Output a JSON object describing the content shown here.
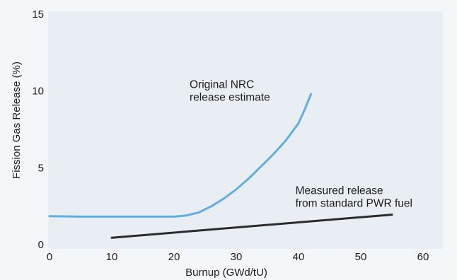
{
  "chart_data": {
    "type": "line",
    "xlabel": "Burnup (GWd/tU)",
    "ylabel": "Fission Gas Release (%)",
    "xlim": [
      0,
      60
    ],
    "ylim": [
      0,
      15
    ],
    "x_ticks": [
      "0",
      "10",
      "20",
      "30",
      "40",
      "50",
      "60"
    ],
    "y_ticks": [
      "0",
      "5",
      "10",
      "15"
    ],
    "grid": false,
    "colors": {
      "background": "#f4f7fa",
      "panel": "#e8eef4",
      "nrc_curve": "#62aedc",
      "measured_line": "#2b2b2b"
    },
    "series": [
      {
        "x": [
          0,
          5,
          10,
          15,
          20,
          22,
          24,
          26,
          28,
          30,
          32,
          34,
          36,
          38,
          40,
          41,
          42
        ],
        "y": [
          1.85,
          1.82,
          1.82,
          1.82,
          1.82,
          1.9,
          2.1,
          2.5,
          3.0,
          3.6,
          4.3,
          5.1,
          5.9,
          6.8,
          7.9,
          8.8,
          9.8
        ]
      },
      {
        "x": [
          10,
          55
        ],
        "y": [
          0.45,
          1.95
        ]
      }
    ],
    "annotations": [
      {
        "lines": [
          "Original NRC",
          "release estimate"
        ],
        "x": 22.5,
        "y": 10.2
      },
      {
        "lines": [
          "Measured release",
          "from standard PWR fuel"
        ],
        "x": 39.5,
        "y": 3.3
      }
    ]
  }
}
